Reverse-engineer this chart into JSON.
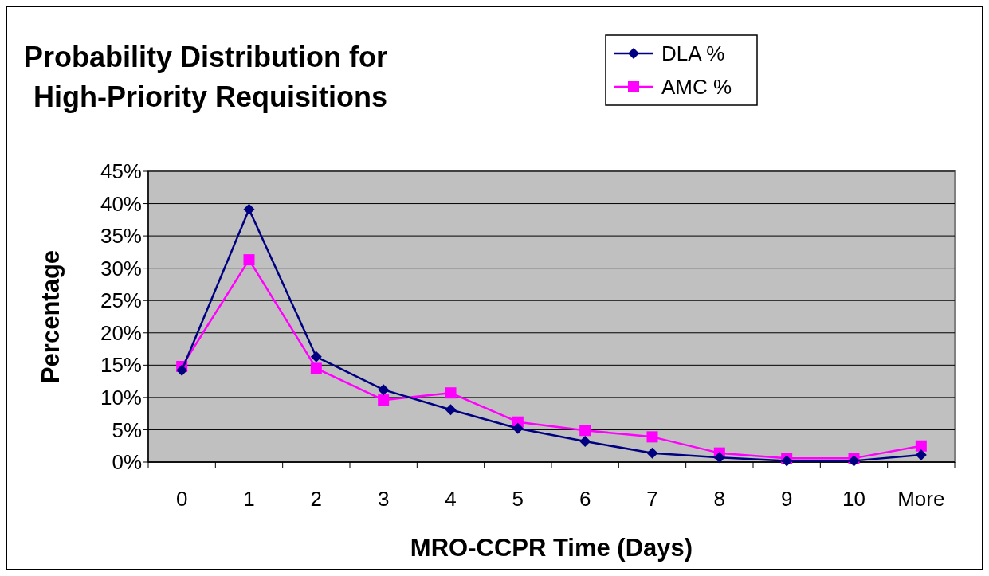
{
  "chart_data": {
    "type": "line",
    "title": "Probability Distribution for High-Priority Requisitions",
    "xlabel": "MRO-CCPR Time (Days)",
    "ylabel": "Percentage",
    "categories": [
      "0",
      "1",
      "2",
      "3",
      "4",
      "5",
      "6",
      "7",
      "8",
      "9",
      "10",
      "More"
    ],
    "series": [
      {
        "name": "DLA %",
        "color": "#000080",
        "marker": "diamond",
        "values": [
          14.2,
          39.1,
          16.3,
          11.2,
          8.1,
          5.2,
          3.2,
          1.4,
          0.7,
          0.2,
          0.2,
          1.1
        ]
      },
      {
        "name": "AMC %",
        "color": "#ff00ff",
        "marker": "square",
        "values": [
          14.8,
          31.3,
          14.5,
          9.6,
          10.7,
          6.2,
          4.9,
          3.9,
          1.4,
          0.6,
          0.6,
          2.5
        ]
      }
    ],
    "ylim": [
      0,
      45
    ],
    "yticks": [
      {
        "value": 0,
        "label": "0%"
      },
      {
        "value": 5,
        "label": "5%"
      },
      {
        "value": 10,
        "label": "10%"
      },
      {
        "value": 15,
        "label": "15%"
      },
      {
        "value": 20,
        "label": "20%"
      },
      {
        "value": 25,
        "label": "25%"
      },
      {
        "value": 30,
        "label": "30%"
      },
      {
        "value": 35,
        "label": "35%"
      },
      {
        "value": 40,
        "label": "40%"
      },
      {
        "value": 45,
        "label": "45%"
      }
    ],
    "grid": "y",
    "legend": "top right",
    "line_style": "solid"
  }
}
